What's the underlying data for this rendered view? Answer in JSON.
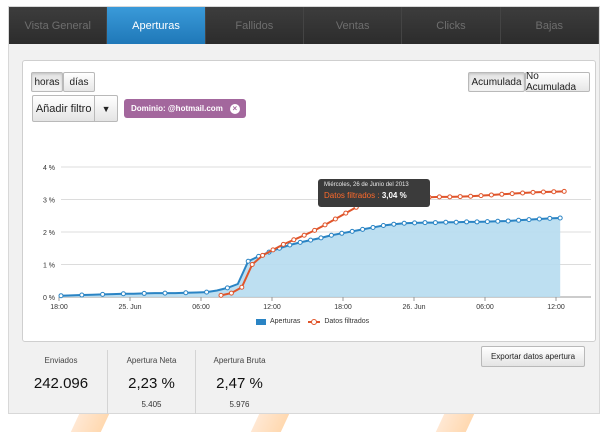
{
  "tabs": [
    {
      "label": "Vista General",
      "active": false
    },
    {
      "label": "Aperturas",
      "active": true
    },
    {
      "label": "Fallidos",
      "active": false
    },
    {
      "label": "Ventas",
      "active": false
    },
    {
      "label": "Clicks",
      "active": false
    },
    {
      "label": "Bajas",
      "active": false
    }
  ],
  "granularity": {
    "hours_label": "horas",
    "days_label": "días",
    "selected": "horas"
  },
  "mode": {
    "cumulative_label": "Acumulada",
    "non_cumulative_label": "No Acumulada",
    "selected": "Acumulada"
  },
  "filter": {
    "add_label": "Añadir filtro",
    "tag_label": "Dominio: @hotmail.com"
  },
  "tooltip": {
    "date": "Miércoles, 26 de Junio del 2013",
    "series_label": "Datos filtrados :",
    "value": "3,04 %"
  },
  "colors": {
    "accent": "#1f78b8",
    "aperturas": "#2a84c4",
    "aperturas_fill": "#b6dcf0",
    "filtrados": "#e0552b",
    "tag": "#a3679d"
  },
  "chart_data": {
    "type": "area",
    "x_tick_labels": [
      "18:00",
      "25. Jun",
      "06:00",
      "12:00",
      "18:00",
      "26. Jun",
      "06:00",
      "12:00"
    ],
    "y_tick_labels": [
      "0 %",
      "1 %",
      "2 %",
      "3 %",
      "4 %"
    ],
    "ylim": [
      0,
      4
    ],
    "grid": true,
    "legend_position": "bottom-center",
    "series": [
      {
        "name": "Aperturas",
        "values": [
          0.04,
          0.05,
          0.06,
          0.07,
          0.08,
          0.09,
          0.1,
          0.1,
          0.11,
          0.12,
          0.12,
          0.12,
          0.13,
          0.14,
          0.15,
          0.2,
          0.28,
          0.4,
          1.1,
          1.25,
          1.38,
          1.5,
          1.6,
          1.68,
          1.75,
          1.82,
          1.9,
          1.96,
          2.02,
          2.08,
          2.14,
          2.2,
          2.24,
          2.27,
          2.28,
          2.29,
          2.29,
          2.3,
          2.3,
          2.31,
          2.31,
          2.32,
          2.33,
          2.34,
          2.36,
          2.38,
          2.4,
          2.42,
          2.43
        ]
      },
      {
        "name": "Datos filtrados",
        "values": [
          null,
          null,
          null,
          null,
          null,
          null,
          null,
          null,
          null,
          null,
          null,
          null,
          null,
          null,
          null,
          0.05,
          0.12,
          0.3,
          1.0,
          1.28,
          1.45,
          1.62,
          1.76,
          1.9,
          2.05,
          2.22,
          2.4,
          2.58,
          2.76,
          2.9,
          2.95,
          2.98,
          3.01,
          3.04,
          3.06,
          3.07,
          3.08,
          3.08,
          3.09,
          3.1,
          3.12,
          3.14,
          3.16,
          3.18,
          3.2,
          3.22,
          3.23,
          3.24,
          3.25
        ]
      }
    ]
  },
  "legend": {
    "aperturas": "Aperturas",
    "filtrados": "Datos filtrados"
  },
  "stats": {
    "sent": {
      "label": "Enviados",
      "value": "242.096"
    },
    "net_open": {
      "label": "Apertura Neta",
      "value": "2,23 %",
      "sub": "5.405"
    },
    "gross_open": {
      "label": "Apertura Bruta",
      "value": "2,47 %",
      "sub": "5.976"
    }
  },
  "export_label": "Exportar datos apertura"
}
